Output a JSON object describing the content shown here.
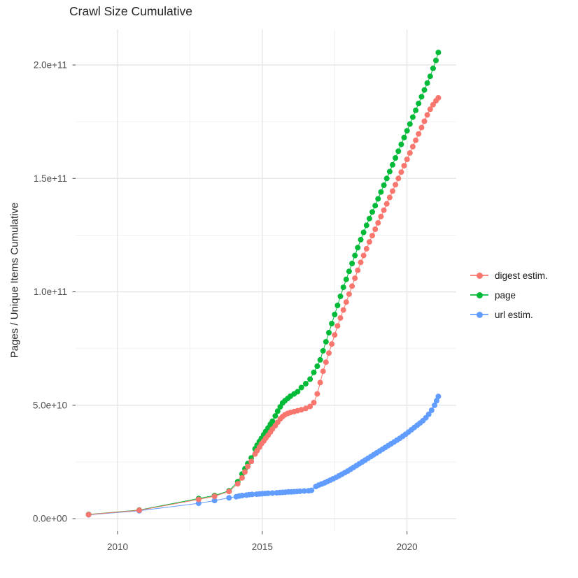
{
  "title": "Crawl Size Cumulative",
  "y_axis_title": "Pages / Unique Items Cumulative",
  "colors": {
    "digest": "#F8766D",
    "page": "#00BA38",
    "url": "#619CFF",
    "grid_major": "#E4E4E4",
    "grid_minor": "#F0F0F0",
    "tick": "#4D4D4D",
    "tick_label": "#4D4D4D",
    "text": "#262626"
  },
  "legend": {
    "items": [
      {
        "label": "digest estim.",
        "color": "#F8766D"
      },
      {
        "label": "page",
        "color": "#00BA38"
      },
      {
        "label": "url estim.",
        "color": "#619CFF"
      }
    ]
  },
  "chart_data": {
    "type": "scatter",
    "title": "Crawl Size Cumulative",
    "xlabel": "",
    "ylabel": "Pages / Unique Items Cumulative",
    "y_unit": 1000000000.0,
    "xlim": [
      2008.55,
      2021.7
    ],
    "ylim_e9": [
      -5.5,
      215.7
    ],
    "grid": true,
    "legend_position": "right",
    "x_ticks": {
      "major": [
        2010,
        2015,
        2020
      ],
      "minor": [
        2012.5,
        2017.5
      ],
      "labels": [
        "2010",
        "2015",
        "2020"
      ]
    },
    "y_ticks": {
      "major_e9": [
        0,
        50,
        100,
        150,
        200
      ],
      "minor_e9": [
        25,
        75,
        125,
        175
      ],
      "labels": [
        "0.0e+00",
        "5.0e+10",
        "1.0e+11",
        "1.5e+11",
        "2.0e+11"
      ]
    },
    "series": [
      {
        "name": "page",
        "color": "#00BA38",
        "points_e9": [
          [
            2009.0,
            1.9
          ],
          [
            2010.75,
            3.8
          ],
          [
            2012.8,
            8.9
          ],
          [
            2013.35,
            10.2
          ],
          [
            2013.85,
            12.3
          ],
          [
            2014.15,
            16.3
          ],
          [
            2014.3,
            19.7
          ],
          [
            2014.4,
            22
          ],
          [
            2014.5,
            24.3
          ],
          [
            2014.62,
            26.8
          ],
          [
            2014.75,
            30.8
          ],
          [
            2014.82,
            32.4
          ],
          [
            2014.9,
            34
          ],
          [
            2014.97,
            35.4
          ],
          [
            2015.05,
            37
          ],
          [
            2015.12,
            38.5
          ],
          [
            2015.2,
            40
          ],
          [
            2015.28,
            41.6
          ],
          [
            2015.35,
            43
          ],
          [
            2015.45,
            45.3
          ],
          [
            2015.53,
            47.4
          ],
          [
            2015.62,
            49.3
          ],
          [
            2015.7,
            51
          ],
          [
            2015.78,
            52
          ],
          [
            2015.88,
            53
          ],
          [
            2015.97,
            54
          ],
          [
            2016.1,
            55
          ],
          [
            2016.22,
            56
          ],
          [
            2016.35,
            57.8
          ],
          [
            2016.5,
            59.5
          ],
          [
            2016.65,
            61.5
          ],
          [
            2016.78,
            64.5
          ],
          [
            2016.9,
            67.2
          ],
          [
            2017.0,
            70
          ],
          [
            2017.1,
            74
          ],
          [
            2017.2,
            78
          ],
          [
            2017.3,
            82
          ],
          [
            2017.4,
            86
          ],
          [
            2017.5,
            90
          ],
          [
            2017.6,
            94
          ],
          [
            2017.7,
            98
          ],
          [
            2017.8,
            102
          ],
          [
            2017.9,
            105.5
          ],
          [
            2018.0,
            109
          ],
          [
            2018.1,
            112.5
          ],
          [
            2018.2,
            116
          ],
          [
            2018.3,
            119.5
          ],
          [
            2018.4,
            123
          ],
          [
            2018.5,
            126.2
          ],
          [
            2018.6,
            129.3
          ],
          [
            2018.7,
            132.3
          ],
          [
            2018.8,
            135.2
          ],
          [
            2018.9,
            138
          ],
          [
            2019.0,
            141
          ],
          [
            2019.1,
            144
          ],
          [
            2019.2,
            147
          ],
          [
            2019.3,
            150
          ],
          [
            2019.4,
            153
          ],
          [
            2019.5,
            156
          ],
          [
            2019.6,
            159
          ],
          [
            2019.7,
            162
          ],
          [
            2019.8,
            165
          ],
          [
            2019.9,
            168
          ],
          [
            2020.0,
            171
          ],
          [
            2020.1,
            174
          ],
          [
            2020.2,
            177
          ],
          [
            2020.3,
            180
          ],
          [
            2020.4,
            183
          ],
          [
            2020.5,
            186
          ],
          [
            2020.6,
            189
          ],
          [
            2020.7,
            192
          ],
          [
            2020.8,
            195
          ],
          [
            2020.9,
            198.5
          ],
          [
            2021.0,
            202
          ],
          [
            2021.08,
            205.5
          ]
        ]
      },
      {
        "name": "url estim.",
        "color": "#619CFF",
        "points_e9": [
          [
            2009.0,
            1.7
          ],
          [
            2010.75,
            3.5
          ],
          [
            2012.8,
            6.8
          ],
          [
            2013.35,
            8
          ],
          [
            2013.85,
            9.2
          ],
          [
            2014.1,
            9.7
          ],
          [
            2014.2,
            10
          ],
          [
            2014.3,
            10.2
          ],
          [
            2014.45,
            10.4
          ],
          [
            2014.55,
            10.6
          ],
          [
            2014.65,
            10.7
          ],
          [
            2014.8,
            10.8
          ],
          [
            2014.9,
            10.9
          ],
          [
            2015.0,
            11
          ],
          [
            2015.1,
            11.1
          ],
          [
            2015.2,
            11.2
          ],
          [
            2015.35,
            11.3
          ],
          [
            2015.5,
            11.4
          ],
          [
            2015.6,
            11.5
          ],
          [
            2015.7,
            11.6
          ],
          [
            2015.8,
            11.7
          ],
          [
            2015.9,
            11.8
          ],
          [
            2016.0,
            11.8
          ],
          [
            2016.1,
            11.9
          ],
          [
            2016.2,
            12
          ],
          [
            2016.3,
            12.1
          ],
          [
            2016.45,
            12.2
          ],
          [
            2016.6,
            12.3
          ],
          [
            2016.7,
            12.5
          ],
          [
            2016.85,
            14.2
          ],
          [
            2016.95,
            14.8
          ],
          [
            2017.05,
            15.3
          ],
          [
            2017.15,
            15.8
          ],
          [
            2017.25,
            16.4
          ],
          [
            2017.35,
            17
          ],
          [
            2017.45,
            17.6
          ],
          [
            2017.55,
            18.2
          ],
          [
            2017.65,
            18.9
          ],
          [
            2017.75,
            19.6
          ],
          [
            2017.85,
            20.3
          ],
          [
            2017.95,
            21
          ],
          [
            2018.05,
            21.8
          ],
          [
            2018.15,
            22.6
          ],
          [
            2018.25,
            23.4
          ],
          [
            2018.35,
            24.2
          ],
          [
            2018.45,
            25
          ],
          [
            2018.55,
            25.8
          ],
          [
            2018.65,
            26.6
          ],
          [
            2018.75,
            27.4
          ],
          [
            2018.85,
            28.2
          ],
          [
            2018.95,
            29
          ],
          [
            2019.05,
            29.8
          ],
          [
            2019.15,
            30.6
          ],
          [
            2019.25,
            31.4
          ],
          [
            2019.35,
            32.2
          ],
          [
            2019.45,
            33
          ],
          [
            2019.55,
            33.8
          ],
          [
            2019.65,
            34.6
          ],
          [
            2019.75,
            35.4
          ],
          [
            2019.85,
            36.3
          ],
          [
            2019.95,
            37.2
          ],
          [
            2020.05,
            38.2
          ],
          [
            2020.15,
            39.2
          ],
          [
            2020.25,
            40.2
          ],
          [
            2020.35,
            41.2
          ],
          [
            2020.45,
            42.2
          ],
          [
            2020.55,
            43.2
          ],
          [
            2020.65,
            44.5
          ],
          [
            2020.75,
            46
          ],
          [
            2020.85,
            47.8
          ],
          [
            2020.95,
            50
          ],
          [
            2021.02,
            52
          ],
          [
            2021.08,
            53.9
          ]
        ]
      },
      {
        "name": "digest estim.",
        "color": "#F8766D",
        "points_e9": [
          [
            2009.0,
            1.8
          ],
          [
            2010.75,
            3.7
          ],
          [
            2012.8,
            8.5
          ],
          [
            2013.35,
            9.9
          ],
          [
            2013.85,
            12
          ],
          [
            2014.15,
            15.4
          ],
          [
            2014.3,
            18
          ],
          [
            2014.4,
            20.6
          ],
          [
            2014.5,
            23
          ],
          [
            2014.62,
            25.2
          ],
          [
            2014.75,
            28.5
          ],
          [
            2014.82,
            30
          ],
          [
            2014.9,
            31.5
          ],
          [
            2014.97,
            33
          ],
          [
            2015.05,
            34.2
          ],
          [
            2015.12,
            35.5
          ],
          [
            2015.2,
            36.8
          ],
          [
            2015.28,
            38.2
          ],
          [
            2015.35,
            39.5
          ],
          [
            2015.45,
            41
          ],
          [
            2015.53,
            42.5
          ],
          [
            2015.62,
            44
          ],
          [
            2015.7,
            45
          ],
          [
            2015.78,
            45.8
          ],
          [
            2015.88,
            46.4
          ],
          [
            2015.97,
            46.8
          ],
          [
            2016.1,
            47.2
          ],
          [
            2016.22,
            47.6
          ],
          [
            2016.35,
            48
          ],
          [
            2016.5,
            48.6
          ],
          [
            2016.65,
            49.5
          ],
          [
            2016.78,
            51.2
          ],
          [
            2016.9,
            55
          ],
          [
            2017.0,
            60
          ],
          [
            2017.1,
            65
          ],
          [
            2017.2,
            69
          ],
          [
            2017.3,
            73
          ],
          [
            2017.4,
            77
          ],
          [
            2017.5,
            81
          ],
          [
            2017.6,
            85
          ],
          [
            2017.7,
            88.5
          ],
          [
            2017.8,
            92
          ],
          [
            2017.9,
            95.5
          ],
          [
            2018.0,
            99
          ],
          [
            2018.1,
            102.5
          ],
          [
            2018.2,
            106
          ],
          [
            2018.3,
            109.5
          ],
          [
            2018.4,
            113
          ],
          [
            2018.5,
            116
          ],
          [
            2018.6,
            119
          ],
          [
            2018.7,
            122
          ],
          [
            2018.8,
            124.8
          ],
          [
            2018.9,
            127.6
          ],
          [
            2019.0,
            130.4
          ],
          [
            2019.1,
            133.2
          ],
          [
            2019.2,
            136
          ],
          [
            2019.3,
            138.8
          ],
          [
            2019.4,
            141.6
          ],
          [
            2019.5,
            144.4
          ],
          [
            2019.6,
            147.2
          ],
          [
            2019.7,
            150
          ],
          [
            2019.8,
            152.8
          ],
          [
            2019.9,
            155.6
          ],
          [
            2020.0,
            158.4
          ],
          [
            2020.1,
            161.2
          ],
          [
            2020.2,
            164
          ],
          [
            2020.3,
            166.8
          ],
          [
            2020.4,
            169.6
          ],
          [
            2020.5,
            172.4
          ],
          [
            2020.6,
            175.2
          ],
          [
            2020.7,
            178
          ],
          [
            2020.8,
            180.5
          ],
          [
            2020.9,
            182.5
          ],
          [
            2021.0,
            184.2
          ],
          [
            2021.08,
            185.5
          ]
        ]
      }
    ]
  }
}
